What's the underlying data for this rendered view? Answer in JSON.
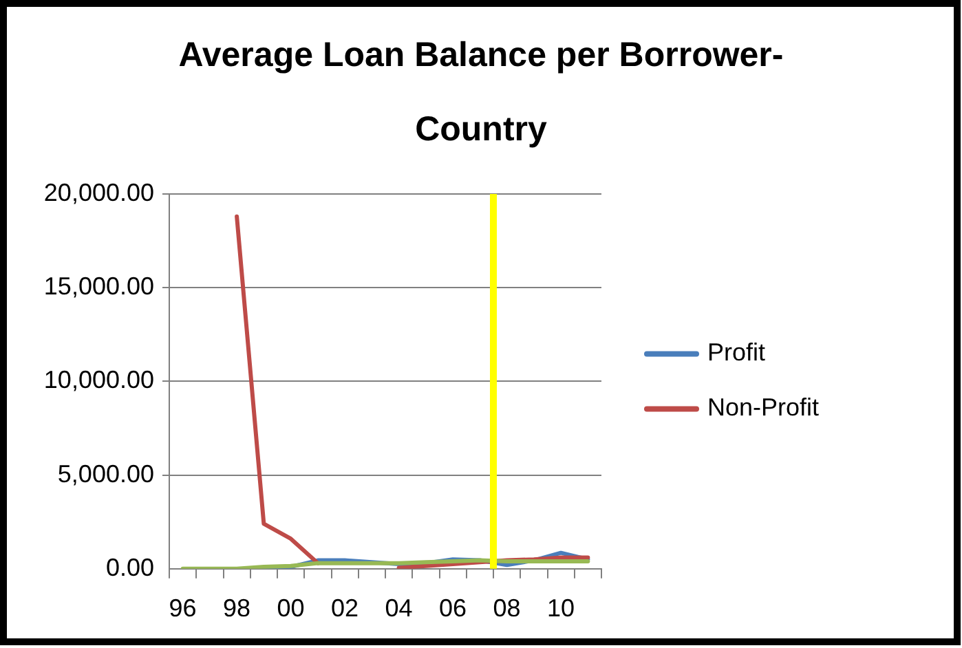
{
  "chart_data": {
    "type": "line",
    "title": "Average Loan Balance per Borrower-Country",
    "x": [
      1996,
      1997,
      1998,
      1999,
      2000,
      2001,
      2002,
      2003,
      2004,
      2005,
      2006,
      2007,
      2008,
      2009,
      2010,
      2011
    ],
    "xlim": [
      1995.5,
      2011.5
    ],
    "xticks": [
      {
        "value": 1995.5,
        "label": null
      },
      {
        "value": 1996,
        "label": "96"
      },
      {
        "value": 1996.5,
        "label": null
      },
      {
        "value": 1997.5,
        "label": null
      },
      {
        "value": 1998,
        "label": "98"
      },
      {
        "value": 1998.5,
        "label": null
      },
      {
        "value": 1999.5,
        "label": null
      },
      {
        "value": 2000,
        "label": "00"
      },
      {
        "value": 2000.5,
        "label": null
      },
      {
        "value": 2001.5,
        "label": null
      },
      {
        "value": 2002,
        "label": "02"
      },
      {
        "value": 2002.5,
        "label": null
      },
      {
        "value": 2003.5,
        "label": null
      },
      {
        "value": 2004,
        "label": "04"
      },
      {
        "value": 2004.5,
        "label": null
      },
      {
        "value": 2005.5,
        "label": null
      },
      {
        "value": 2006,
        "label": "06"
      },
      {
        "value": 2006.5,
        "label": null
      },
      {
        "value": 2007.5,
        "label": null
      },
      {
        "value": 2008,
        "label": "08"
      },
      {
        "value": 2008.5,
        "label": null
      },
      {
        "value": 2009.5,
        "label": null
      },
      {
        "value": 2010,
        "label": "10"
      },
      {
        "value": 2010.5,
        "label": null
      },
      {
        "value": 2011.5,
        "label": null
      }
    ],
    "ylim": [
      0,
      20000
    ],
    "yticks": [
      {
        "value": 0,
        "label": "0.00"
      },
      {
        "value": 5000,
        "label": "5,000.00"
      },
      {
        "value": 10000,
        "label": "10,000.00"
      },
      {
        "value": 15000,
        "label": "15,000.00"
      },
      {
        "value": 20000,
        "label": "20,000.00"
      }
    ],
    "series": [
      {
        "name": "Profit",
        "color": "#4a7ebb",
        "values": [
          null,
          null,
          null,
          50,
          100,
          450,
          450,
          350,
          250,
          300,
          500,
          450,
          200,
          450,
          850,
          500
        ]
      },
      {
        "name": "Non-Profit",
        "color": "#be4b48",
        "values": [
          null,
          null,
          18800,
          2400,
          1600,
          300,
          null,
          null,
          50,
          150,
          250,
          350,
          450,
          500,
          600,
          600
        ]
      },
      {
        "color": "#98b954",
        "values": [
          0,
          0,
          0,
          100,
          150,
          300,
          300,
          300,
          300,
          350,
          400,
          450,
          400,
          400,
          400,
          400
        ]
      }
    ],
    "ref_lines": [
      {
        "axis": "x",
        "value": 2007.5,
        "color": "#ffff00"
      }
    ],
    "grid": "y",
    "legend": "right",
    "marker": "none"
  }
}
